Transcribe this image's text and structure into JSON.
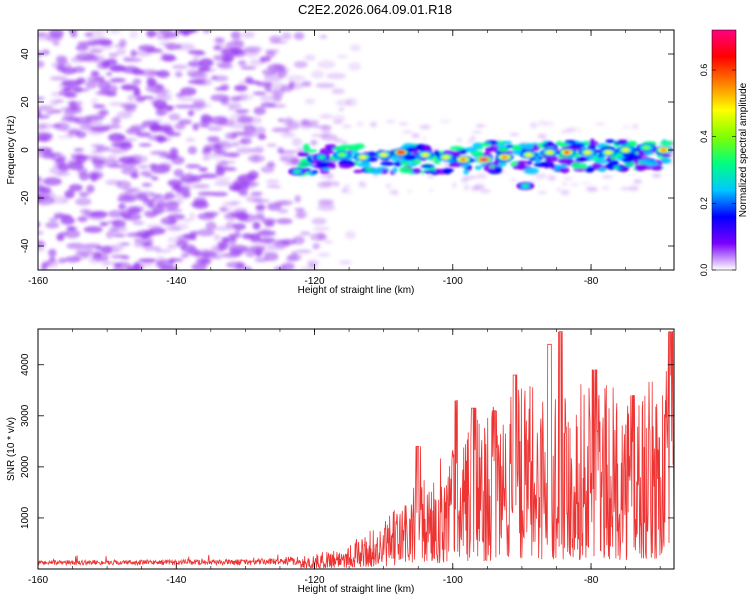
{
  "title": "C2E2.2026.064.09.01.R18",
  "chart_data": [
    {
      "type": "heatmap",
      "name": "spectrogram",
      "xlabel": "Height of straight line (km)",
      "ylabel": "Frequency (Hz)",
      "xlim": [
        -160,
        -68
      ],
      "ylim": [
        -50,
        50
      ],
      "xticks": [
        -160,
        -140,
        -120,
        -100,
        -80
      ],
      "yticks": [
        -40,
        -20,
        0,
        20,
        40
      ],
      "noise_region": {
        "x_range": [
          -160,
          -118
        ],
        "color": "#9a40f0"
      },
      "signal_band": {
        "x_range": [
          -122,
          -69
        ],
        "center_freq": 0,
        "halfwidth_hz": 6
      },
      "peaks": [
        {
          "x": -119,
          "y": -3,
          "amp": 0.35
        },
        {
          "x": -116,
          "y": -2,
          "amp": 0.4
        },
        {
          "x": -113,
          "y": -3,
          "amp": 0.45
        },
        {
          "x": -110,
          "y": -2,
          "amp": 0.5
        },
        {
          "x": -107.5,
          "y": -1,
          "amp": 0.65
        },
        {
          "x": -104,
          "y": -2,
          "amp": 0.45
        },
        {
          "x": -101,
          "y": -3,
          "amp": 0.5
        },
        {
          "x": -98.5,
          "y": -4,
          "amp": 0.55
        },
        {
          "x": -95.5,
          "y": -4,
          "amp": 0.7
        },
        {
          "x": -92.5,
          "y": -3,
          "amp": 0.55
        },
        {
          "x": -89,
          "y": -2,
          "amp": 0.45
        },
        {
          "x": -86,
          "y": -1,
          "amp": 0.5
        },
        {
          "x": -83.5,
          "y": -1,
          "amp": 0.6
        },
        {
          "x": -80.5,
          "y": -1,
          "amp": 0.45
        },
        {
          "x": -77.5,
          "y": -1,
          "amp": 0.5
        },
        {
          "x": -75,
          "y": 0,
          "amp": 0.45
        },
        {
          "x": -72,
          "y": 1,
          "amp": 0.4
        },
        {
          "x": -69.5,
          "y": 0,
          "amp": 0.55
        },
        {
          "x": -89.5,
          "y": -15,
          "amp": 0.35
        },
        {
          "x": -122.5,
          "y": -9,
          "amp": 0.3
        }
      ],
      "colorbar": {
        "label": "Normalized spectral amplitude",
        "range": [
          0,
          0.72
        ],
        "ticks": [
          "0.0",
          "0.2",
          "0.4",
          "0.6"
        ],
        "tick_values": [
          0,
          0.2,
          0.4,
          0.6
        ],
        "colors": [
          "#ffffff",
          "#7a00ff",
          "#0000ff",
          "#00c8ff",
          "#00ff80",
          "#80ff00",
          "#ffff00",
          "#ff8000",
          "#ff0000",
          "#ff0080"
        ]
      }
    },
    {
      "type": "line",
      "name": "snr",
      "xlabel": "Height of straight line (km)",
      "ylabel": "SNR (10 * v/v)",
      "xlim": [
        -160,
        -68
      ],
      "ylim": [
        0,
        4700
      ],
      "xticks": [
        -160,
        -140,
        -120,
        -100,
        -80
      ],
      "yticks": [
        1000,
        2000,
        3000,
        4000
      ],
      "color": "#ee3333",
      "envelope": {
        "x": [
          -160,
          -130,
          -125,
          -120,
          -115,
          -110,
          -106,
          -103,
          -100,
          -95,
          -90,
          -85,
          -80,
          -75,
          -70,
          -68
        ],
        "y": [
          150,
          170,
          200,
          280,
          520,
          900,
          1600,
          1900,
          2600,
          3100,
          3600,
          3800,
          3700,
          3500,
          3800,
          4100
        ]
      },
      "peaks": [
        {
          "x": -105,
          "y": 2400
        },
        {
          "x": -99.5,
          "y": 3300
        },
        {
          "x": -97,
          "y": 3150
        },
        {
          "x": -94,
          "y": 3100
        },
        {
          "x": -91,
          "y": 3800
        },
        {
          "x": -86,
          "y": 4400
        },
        {
          "x": -84.5,
          "y": 4650
        },
        {
          "x": -79.5,
          "y": 3900
        },
        {
          "x": -74,
          "y": 3400
        },
        {
          "x": -68.5,
          "y": 4650
        }
      ]
    }
  ]
}
